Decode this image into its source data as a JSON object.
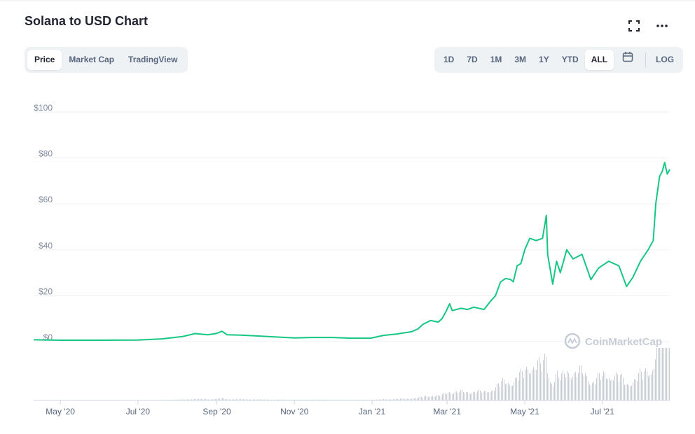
{
  "title": "Solana to USD Chart",
  "header_icons": [
    "expand-icon",
    "more-horizontal-icon"
  ],
  "chart_type_tabs": [
    {
      "label": "Price",
      "active": true
    },
    {
      "label": "Market Cap",
      "active": false
    },
    {
      "label": "TradingView",
      "active": false
    }
  ],
  "range_tabs": [
    {
      "label": "1D",
      "active": false
    },
    {
      "label": "7D",
      "active": false
    },
    {
      "label": "1M",
      "active": false
    },
    {
      "label": "3M",
      "active": false
    },
    {
      "label": "1Y",
      "active": false
    },
    {
      "label": "YTD",
      "active": false
    },
    {
      "label": "ALL",
      "active": true
    }
  ],
  "calendar_icon": "calendar-icon",
  "log_label": "LOG",
  "watermark": "CoinMarketCap",
  "colors": {
    "line": "#16c784",
    "volume": "#c8ccd5",
    "grid": "#eff2f5",
    "axis_text": "#808a9d"
  },
  "chart_data": {
    "type": "line",
    "title": "",
    "xlabel": "",
    "ylabel": "",
    "ylim": [
      0,
      100
    ],
    "yticks": [
      0,
      20,
      40,
      60,
      80,
      100
    ],
    "ytick_labels": [
      "$0",
      "$20",
      "$40",
      "$60",
      "$80",
      "$100"
    ],
    "x_range": [
      "2020-04-10",
      "2021-08-23"
    ],
    "xticks": [
      {
        "date": "2020-05-01",
        "label": "May '20"
      },
      {
        "date": "2020-07-01",
        "label": "Jul '20"
      },
      {
        "date": "2020-09-01",
        "label": "Sep '20"
      },
      {
        "date": "2020-11-01",
        "label": "Nov '20"
      },
      {
        "date": "2021-01-01",
        "label": "Jan '21"
      },
      {
        "date": "2021-03-01",
        "label": "Mar '21"
      },
      {
        "date": "2021-05-01",
        "label": "May '21"
      },
      {
        "date": "2021-07-01",
        "label": "Jul '21"
      }
    ],
    "grid": true,
    "series": [
      {
        "points": [
          [
            "2020-04-10",
            0.8
          ],
          [
            "2020-05-01",
            0.6
          ],
          [
            "2020-06-01",
            0.6
          ],
          [
            "2020-07-01",
            0.7
          ],
          [
            "2020-07-20",
            1.2
          ],
          [
            "2020-08-05",
            2.2
          ],
          [
            "2020-08-15",
            3.5
          ],
          [
            "2020-08-25",
            3.0
          ],
          [
            "2020-09-01",
            3.6
          ],
          [
            "2020-09-05",
            4.5
          ],
          [
            "2020-09-09",
            3.0
          ],
          [
            "2020-09-20",
            2.8
          ],
          [
            "2020-10-01",
            2.5
          ],
          [
            "2020-10-15",
            2.1
          ],
          [
            "2020-11-01",
            1.6
          ],
          [
            "2020-11-15",
            1.8
          ],
          [
            "2020-12-01",
            1.8
          ],
          [
            "2020-12-15",
            1.5
          ],
          [
            "2020-12-31",
            1.5
          ],
          [
            "2021-01-10",
            2.7
          ],
          [
            "2021-01-20",
            3.3
          ],
          [
            "2021-02-01",
            4.3
          ],
          [
            "2021-02-06",
            5.5
          ],
          [
            "2021-02-10",
            7.5
          ],
          [
            "2021-02-16",
            9.2
          ],
          [
            "2021-02-22",
            8.5
          ],
          [
            "2021-02-25",
            10.0
          ],
          [
            "2021-02-28",
            13.0
          ],
          [
            "2021-03-03",
            16.5
          ],
          [
            "2021-03-05",
            13.5
          ],
          [
            "2021-03-12",
            14.5
          ],
          [
            "2021-03-17",
            14.0
          ],
          [
            "2021-03-22",
            15.0
          ],
          [
            "2021-03-30",
            14.0
          ],
          [
            "2021-04-04",
            17.5
          ],
          [
            "2021-04-08",
            20.0
          ],
          [
            "2021-04-12",
            26.0
          ],
          [
            "2021-04-16",
            27.5
          ],
          [
            "2021-04-20",
            27.0
          ],
          [
            "2021-04-22",
            26.0
          ],
          [
            "2021-04-25",
            33.0
          ],
          [
            "2021-04-28",
            34.0
          ],
          [
            "2021-05-01",
            40.0
          ],
          [
            "2021-05-05",
            45.0
          ],
          [
            "2021-05-10",
            44.0
          ],
          [
            "2021-05-15",
            45.0
          ],
          [
            "2021-05-18",
            55.0
          ],
          [
            "2021-05-19",
            38.0
          ],
          [
            "2021-05-23",
            25.0
          ],
          [
            "2021-05-26",
            35.0
          ],
          [
            "2021-05-29",
            30.0
          ],
          [
            "2021-06-03",
            40.0
          ],
          [
            "2021-06-08",
            36.0
          ],
          [
            "2021-06-15",
            38.0
          ],
          [
            "2021-06-22",
            27.0
          ],
          [
            "2021-06-28",
            32.0
          ],
          [
            "2021-07-06",
            35.0
          ],
          [
            "2021-07-14",
            33.0
          ],
          [
            "2021-07-20",
            24.0
          ],
          [
            "2021-07-25",
            28.0
          ],
          [
            "2021-07-31",
            35.0
          ],
          [
            "2021-08-06",
            40.0
          ],
          [
            "2021-08-10",
            44.0
          ],
          [
            "2021-08-12",
            60.0
          ],
          [
            "2021-08-15",
            72.0
          ],
          [
            "2021-08-17",
            74.0
          ],
          [
            "2021-08-19",
            78.0
          ],
          [
            "2021-08-21",
            73.0
          ],
          [
            "2021-08-23",
            75.0
          ]
        ]
      }
    ],
    "volume_bars": true
  }
}
